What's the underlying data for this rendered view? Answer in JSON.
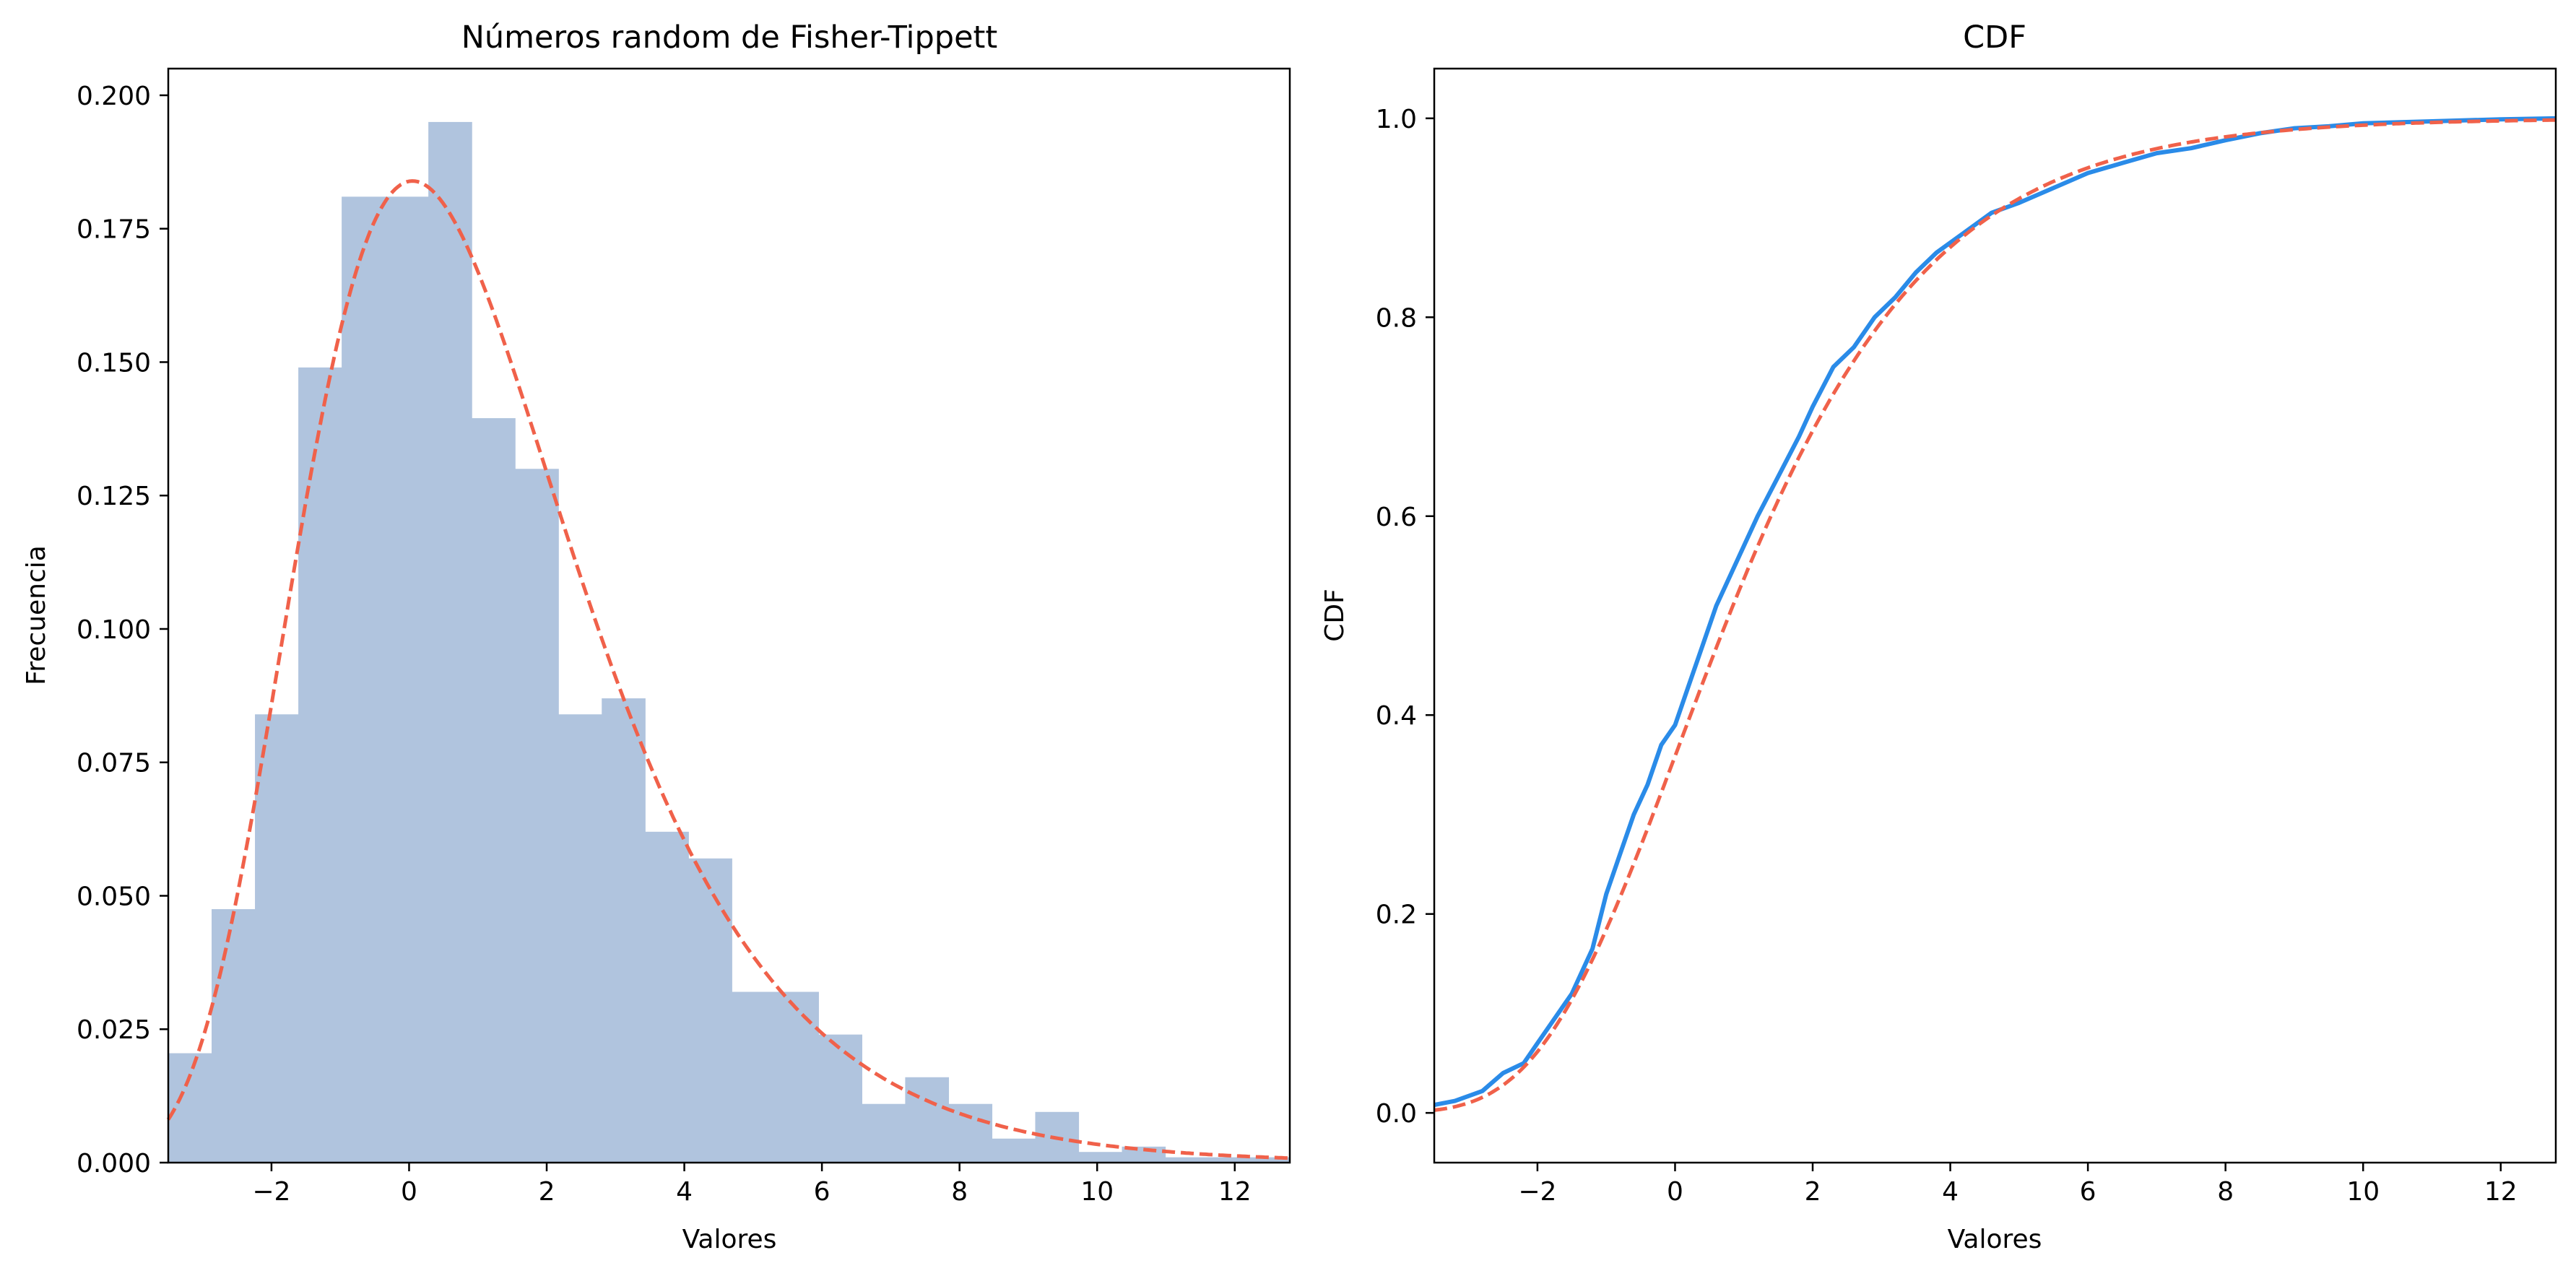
{
  "chart_data": [
    {
      "type": "bar",
      "title": "Números random de Fisher-Tippett",
      "xlabel": "Valores",
      "ylabel": "Frecuencia",
      "xlim": [
        -3.5,
        12.8
      ],
      "ylim": [
        0,
        0.205
      ],
      "grid": false,
      "xticks": [
        -2,
        0,
        2,
        4,
        6,
        8,
        10,
        12
      ],
      "xtick_labels": [
        "−2",
        "0",
        "2",
        "4",
        "6",
        "8",
        "10",
        "12"
      ],
      "yticks": [
        0,
        0.025,
        0.05,
        0.075,
        0.1,
        0.125,
        0.15,
        0.175,
        0.2
      ],
      "ytick_labels": [
        "0.000",
        "0.025",
        "0.050",
        "0.075",
        "0.100",
        "0.125",
        "0.150",
        "0.175",
        "0.200"
      ],
      "histogram": {
        "color": "#b0c4de",
        "bin_edges": [
          -3.5,
          -2.87,
          -2.24,
          -1.61,
          -0.98,
          -0.35,
          0.28,
          0.91,
          1.54,
          2.17,
          2.8,
          3.43,
          4.06,
          4.69,
          5.32,
          5.95,
          6.58,
          7.21,
          7.84,
          8.47,
          9.1,
          9.73,
          10.36,
          10.99,
          11.62,
          12.25,
          12.8
        ],
        "densities": [
          0.0205,
          0.0475,
          0.084,
          0.149,
          0.181,
          0.181,
          0.195,
          0.1395,
          0.13,
          0.084,
          0.087,
          0.062,
          0.057,
          0.032,
          0.032,
          0.024,
          0.011,
          0.016,
          0.011,
          0.0045,
          0.0095,
          0.002,
          0.003,
          0.001,
          0.001,
          0.001
        ]
      },
      "fit_curve": {
        "color": "#f0614a",
        "style": "dashed",
        "distribution": "gumbel",
        "loc": 0.05,
        "scale": 2.0
      }
    },
    {
      "type": "line",
      "title": "CDF",
      "xlabel": "Valores",
      "ylabel": "CDF",
      "xlim": [
        -3.5,
        12.8
      ],
      "ylim": [
        -0.05,
        1.05
      ],
      "grid": false,
      "xticks": [
        -2,
        0,
        2,
        4,
        6,
        8,
        10,
        12
      ],
      "xtick_labels": [
        "−2",
        "0",
        "2",
        "4",
        "6",
        "8",
        "10",
        "12"
      ],
      "yticks": [
        0,
        0.2,
        0.4,
        0.6,
        0.8,
        1.0
      ],
      "ytick_labels": [
        "0.0",
        "0.2",
        "0.4",
        "0.6",
        "0.8",
        "1.0"
      ],
      "series": [
        {
          "style": "solid",
          "color": "#2a8be8",
          "x": [
            -3.5,
            -3.2,
            -2.8,
            -2.5,
            -2.2,
            -2.0,
            -1.8,
            -1.5,
            -1.2,
            -1.0,
            -0.8,
            -0.6,
            -0.4,
            -0.2,
            0.0,
            0.2,
            0.4,
            0.6,
            0.8,
            1.0,
            1.2,
            1.5,
            1.8,
            2.0,
            2.3,
            2.6,
            2.9,
            3.2,
            3.5,
            3.8,
            4.2,
            4.6,
            5.0,
            5.5,
            6.0,
            6.5,
            7.0,
            7.5,
            8.0,
            8.5,
            9.0,
            9.5,
            10.0,
            11.0,
            12.0,
            12.8
          ],
          "y": [
            0.008,
            0.012,
            0.022,
            0.04,
            0.05,
            0.07,
            0.09,
            0.12,
            0.165,
            0.22,
            0.26,
            0.3,
            0.33,
            0.37,
            0.39,
            0.43,
            0.47,
            0.51,
            0.54,
            0.57,
            0.6,
            0.64,
            0.68,
            0.71,
            0.75,
            0.77,
            0.8,
            0.82,
            0.845,
            0.865,
            0.885,
            0.905,
            0.915,
            0.93,
            0.945,
            0.955,
            0.965,
            0.97,
            0.978,
            0.985,
            0.99,
            0.992,
            0.995,
            0.997,
            0.999,
            1.0
          ]
        },
        {
          "style": "dashed",
          "color": "#f0614a",
          "distribution": "gumbel",
          "loc": 0.05,
          "scale": 2.0
        }
      ]
    }
  ]
}
